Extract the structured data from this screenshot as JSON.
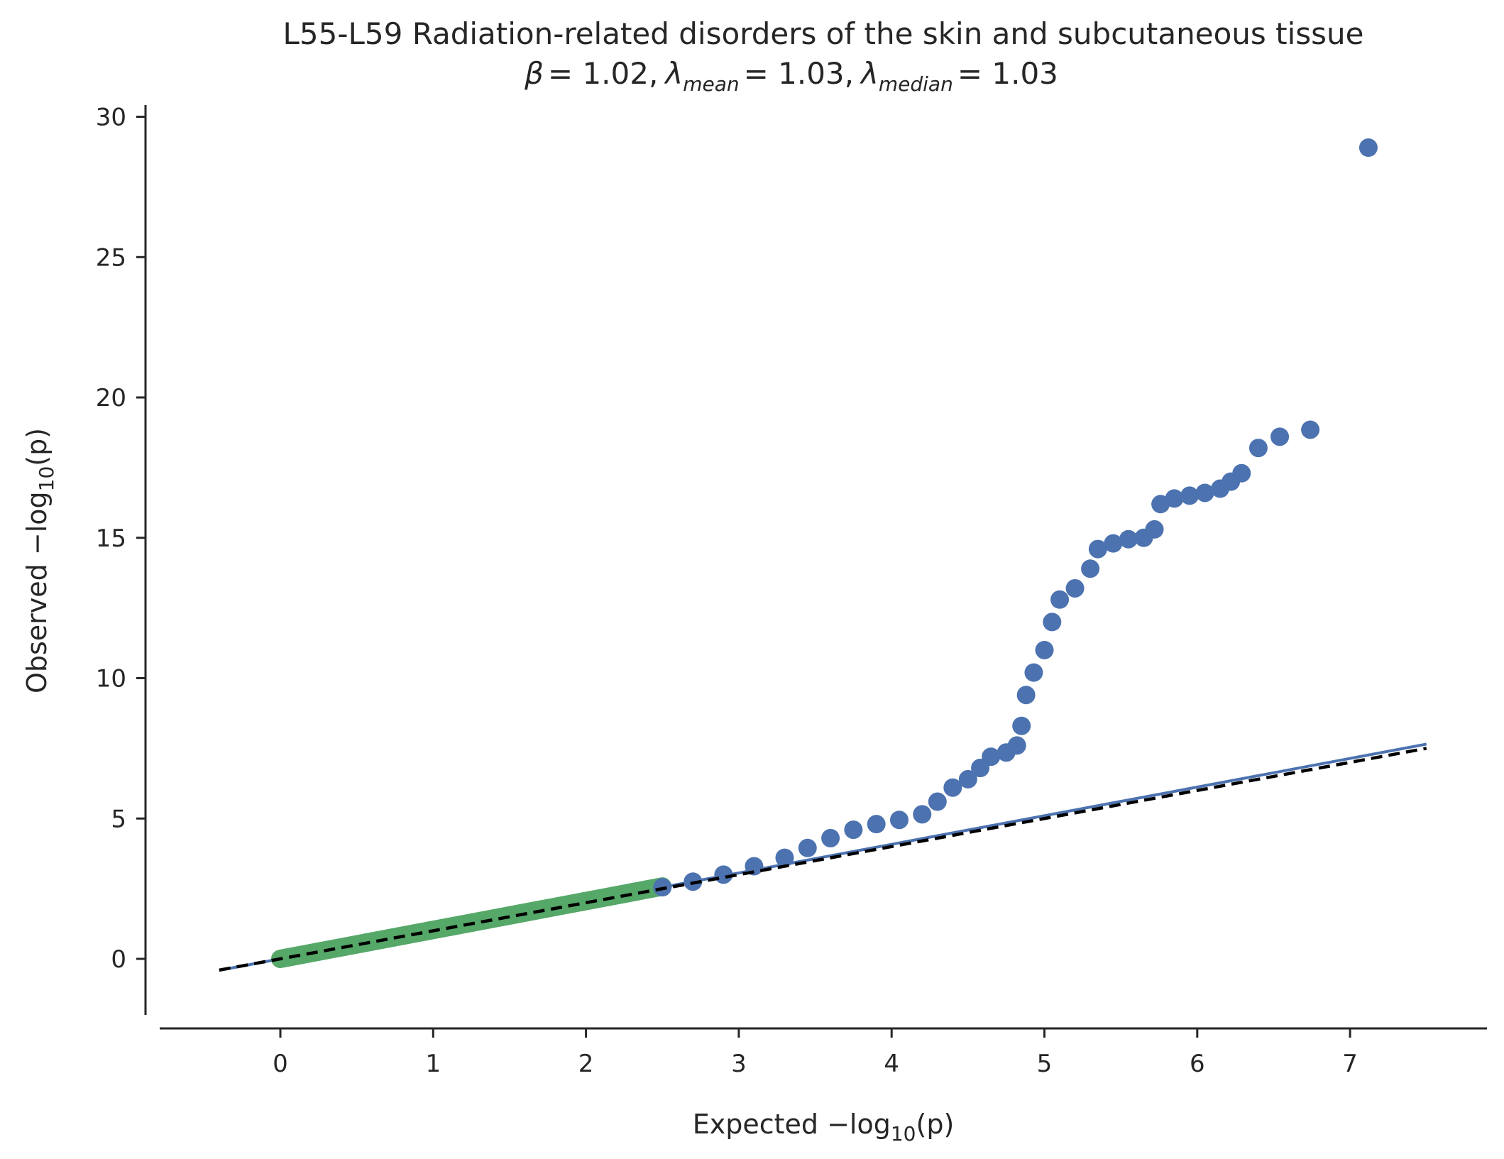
{
  "colors": {
    "lower_points": "#55a868",
    "upper_points": "#4c72b0",
    "fit_line": "#4c72b0",
    "reference_line": "#000000",
    "axis": "#262626"
  },
  "chart_data": {
    "type": "scatter",
    "title": "L55-L59 Radiation-related disorders of the skin and subcutaneous tissue",
    "subtitle": {
      "beta_symbol": "β",
      "beta_value": "= 1.02,",
      "lambda_symbol": "λ",
      "lambda_mean_sub": "mean",
      "lambda_mean_value": "= 1.03,",
      "lambda_median_sub": "median",
      "lambda_median_value": "= 1.03"
    },
    "xlabel": {
      "prefix": "Expected −log",
      "subscript": "10",
      "suffix": "(p)"
    },
    "ylabel": {
      "prefix": "Observed −log",
      "subscript": "10",
      "suffix": "(p)"
    },
    "xlim": [
      -0.8,
      7.8
    ],
    "ylim": [
      -1.9,
      30.3
    ],
    "xticks": [
      0,
      1,
      2,
      3,
      4,
      5,
      6,
      7
    ],
    "yticks": [
      0,
      5,
      10,
      15,
      20,
      25,
      30
    ],
    "grid": false,
    "fit_line": {
      "slope": 1.02,
      "x": [
        -0.4,
        7.5
      ]
    },
    "reference_line": {
      "style": "dashed",
      "x": [
        -0.4,
        7.5
      ]
    },
    "lower_band": {
      "x_start": 0.0,
      "x_end": 2.5,
      "slope": 1.03
    },
    "series": [
      {
        "points": [
          [
            2.5,
            2.55
          ],
          [
            2.7,
            2.75
          ],
          [
            2.9,
            3.0
          ],
          [
            3.1,
            3.3
          ],
          [
            3.3,
            3.6
          ],
          [
            3.45,
            3.95
          ],
          [
            3.6,
            4.3
          ],
          [
            3.75,
            4.6
          ],
          [
            3.9,
            4.8
          ],
          [
            4.05,
            4.95
          ],
          [
            4.2,
            5.15
          ],
          [
            4.3,
            5.6
          ],
          [
            4.4,
            6.1
          ],
          [
            4.5,
            6.4
          ],
          [
            4.58,
            6.8
          ],
          [
            4.65,
            7.2
          ],
          [
            4.75,
            7.35
          ],
          [
            4.82,
            7.6
          ],
          [
            4.85,
            8.3
          ],
          [
            4.88,
            9.4
          ],
          [
            4.93,
            10.2
          ],
          [
            5.0,
            11.0
          ],
          [
            5.05,
            12.0
          ],
          [
            5.1,
            12.8
          ],
          [
            5.2,
            13.2
          ],
          [
            5.3,
            13.9
          ],
          [
            5.35,
            14.6
          ],
          [
            5.45,
            14.8
          ],
          [
            5.55,
            14.95
          ],
          [
            5.65,
            15.0
          ],
          [
            5.72,
            15.3
          ],
          [
            5.76,
            16.2
          ],
          [
            5.85,
            16.4
          ],
          [
            5.95,
            16.5
          ],
          [
            6.05,
            16.6
          ],
          [
            6.15,
            16.75
          ],
          [
            6.22,
            17.0
          ],
          [
            6.29,
            17.3
          ],
          [
            6.4,
            18.2
          ],
          [
            6.54,
            18.6
          ],
          [
            6.74,
            18.85
          ],
          [
            7.12,
            28.9
          ]
        ]
      }
    ]
  }
}
